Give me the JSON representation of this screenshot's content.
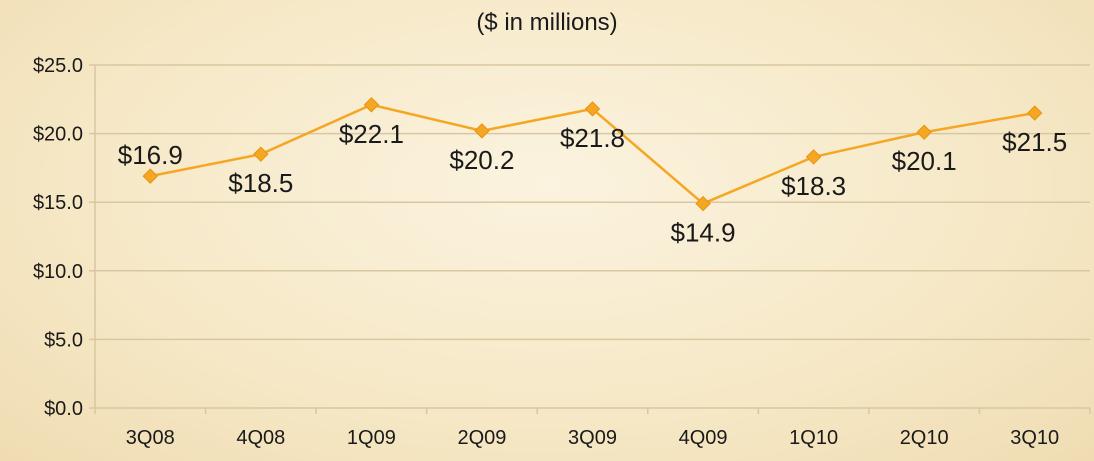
{
  "chart_data": {
    "type": "line",
    "title": "($ in millions)",
    "categories": [
      "3Q08",
      "4Q08",
      "1Q09",
      "2Q09",
      "3Q09",
      "4Q09",
      "1Q10",
      "2Q10",
      "3Q10"
    ],
    "values": [
      16.9,
      18.5,
      22.1,
      20.2,
      21.8,
      14.9,
      18.3,
      20.1,
      21.5
    ],
    "data_labels": [
      "$16.9",
      "$18.5",
      "$22.1",
      "$20.2",
      "$21.8",
      "$14.9",
      "$18.3",
      "$20.1",
      "$21.5"
    ],
    "yticks": [
      "$25.0",
      "$20.0",
      "$15.0",
      "$10.0",
      "$5.0",
      "$0.0"
    ],
    "ylim": [
      0,
      25
    ],
    "grid": true,
    "line_color": "#f5a623",
    "grid_color": "#d8c7a0"
  }
}
